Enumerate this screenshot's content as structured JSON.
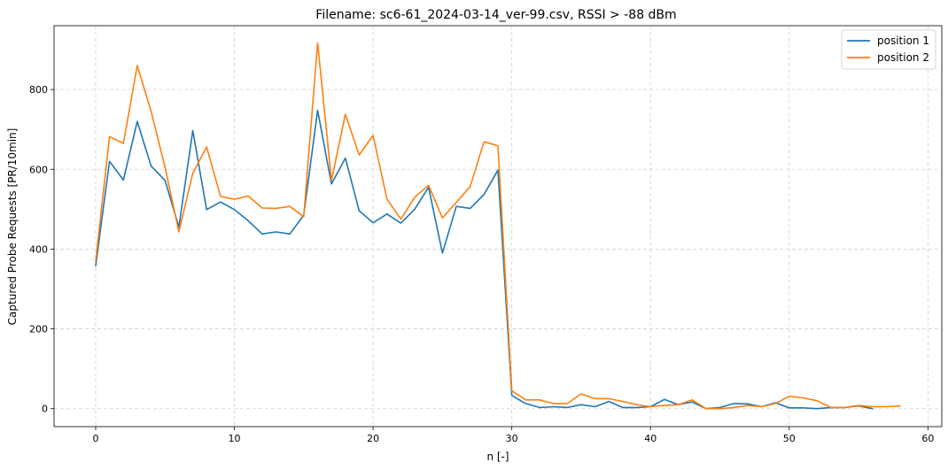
{
  "chart_data": {
    "type": "line",
    "title": "Filename: sc6-61_2024-03-14_ver-99.csv, RSSI > -88 dBm",
    "xlabel": "n [-]",
    "ylabel": "Captured Probe Requests [PR/10min]",
    "xlim": [
      -3,
      61
    ],
    "ylim": [
      -45,
      960
    ],
    "xticks": [
      0,
      10,
      20,
      30,
      40,
      50,
      60
    ],
    "yticks": [
      0,
      200,
      400,
      600,
      800
    ],
    "grid": true,
    "legend_position": "top-right",
    "series": [
      {
        "name": "position 1",
        "color": "#1f77b4",
        "x": [
          0,
          1,
          2,
          3,
          4,
          5,
          6,
          7,
          8,
          9,
          10,
          11,
          12,
          13,
          14,
          15,
          16,
          17,
          18,
          19,
          20,
          21,
          22,
          23,
          24,
          25,
          26,
          27,
          28,
          29,
          30,
          31,
          32,
          33,
          34,
          35,
          36,
          37,
          38,
          39,
          40,
          41,
          42,
          43,
          44,
          45,
          46,
          47,
          48,
          49,
          50,
          51,
          52,
          53,
          54,
          55,
          56
        ],
        "values": [
          358,
          620,
          573,
          720,
          608,
          572,
          455,
          697,
          499,
          518,
          499,
          471,
          438,
          443,
          438,
          485,
          748,
          563,
          628,
          496,
          466,
          488,
          465,
          500,
          555,
          390,
          507,
          502,
          537,
          598,
          33,
          13,
          3,
          5,
          3,
          10,
          5,
          18,
          3,
          3,
          5,
          23,
          10,
          17,
          0,
          3,
          13,
          12,
          5,
          15,
          2,
          2,
          0,
          3,
          3,
          7,
          0
        ]
      },
      {
        "name": "position 2",
        "color": "#ff7f0e",
        "x": [
          0,
          1,
          2,
          3,
          4,
          5,
          6,
          7,
          8,
          9,
          10,
          11,
          12,
          13,
          14,
          15,
          16,
          17,
          18,
          19,
          20,
          21,
          22,
          23,
          24,
          25,
          26,
          27,
          28,
          29,
          30,
          31,
          32,
          33,
          34,
          35,
          36,
          37,
          38,
          39,
          40,
          41,
          42,
          43,
          44,
          45,
          46,
          47,
          48,
          49,
          50,
          51,
          52,
          53,
          54,
          55,
          56,
          57,
          58
        ],
        "values": [
          370,
          682,
          665,
          860,
          745,
          605,
          443,
          590,
          656,
          532,
          525,
          533,
          503,
          502,
          507,
          481,
          917,
          572,
          738,
          636,
          685,
          525,
          475,
          530,
          560,
          478,
          517,
          557,
          669,
          659,
          45,
          22,
          22,
          13,
          13,
          37,
          25,
          25,
          18,
          10,
          5,
          8,
          10,
          22,
          0,
          0,
          3,
          8,
          5,
          13,
          31,
          27,
          20,
          3,
          3,
          8,
          5,
          5,
          7
        ]
      }
    ]
  }
}
